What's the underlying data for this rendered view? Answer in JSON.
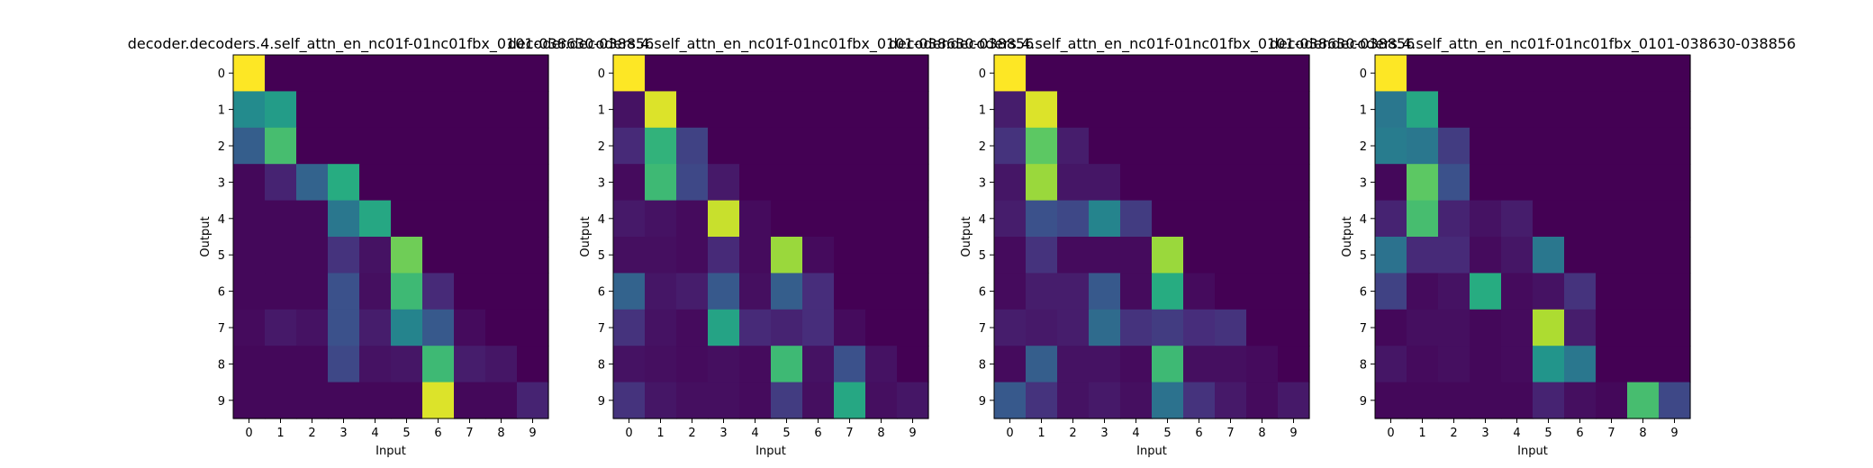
{
  "chart_data": [
    {
      "type": "heatmap",
      "title": "decoder.decoders.4.self_attn_en_nc01f-01nc01fbx_0101-038630-038856",
      "xlabel": "Input",
      "ylabel": "Output",
      "x_ticks": [
        "0",
        "1",
        "2",
        "3",
        "4",
        "5",
        "6",
        "7",
        "8",
        "9"
      ],
      "y_ticks": [
        "0",
        "1",
        "2",
        "3",
        "4",
        "5",
        "6",
        "7",
        "8",
        "9"
      ],
      "colormap": "viridis",
      "vmin": 0,
      "vmax": 1,
      "values": [
        [
          1.0,
          0.0,
          0.0,
          0.0,
          0.0,
          0.0,
          0.0,
          0.0,
          0.0,
          0.0
        ],
        [
          0.48,
          0.55,
          0.0,
          0.0,
          0.0,
          0.0,
          0.0,
          0.0,
          0.0,
          0.0
        ],
        [
          0.3,
          0.7,
          0.0,
          0.0,
          0.0,
          0.0,
          0.0,
          0.0,
          0.0,
          0.0
        ],
        [
          0.02,
          0.1,
          0.32,
          0.62,
          0.0,
          0.0,
          0.0,
          0.0,
          0.0,
          0.0
        ],
        [
          0.02,
          0.02,
          0.02,
          0.4,
          0.6,
          0.0,
          0.0,
          0.0,
          0.0,
          0.0
        ],
        [
          0.02,
          0.02,
          0.02,
          0.15,
          0.05,
          0.78,
          0.0,
          0.0,
          0.0,
          0.0
        ],
        [
          0.02,
          0.02,
          0.02,
          0.25,
          0.04,
          0.68,
          0.12,
          0.0,
          0.0,
          0.0
        ],
        [
          0.03,
          0.07,
          0.05,
          0.25,
          0.08,
          0.45,
          0.28,
          0.03,
          0.0,
          0.0
        ],
        [
          0.02,
          0.02,
          0.02,
          0.22,
          0.05,
          0.06,
          0.68,
          0.08,
          0.06,
          0.0
        ],
        [
          0.02,
          0.02,
          0.02,
          0.02,
          0.02,
          0.02,
          0.95,
          0.02,
          0.02,
          0.1
        ]
      ]
    },
    {
      "type": "heatmap",
      "title": "decoder.decoders.4.self_attn_en_nc01f-01nc01fbx_0101-038630-038856",
      "xlabel": "Input",
      "ylabel": "Output",
      "x_ticks": [
        "0",
        "1",
        "2",
        "3",
        "4",
        "5",
        "6",
        "7",
        "8",
        "9"
      ],
      "y_ticks": [
        "0",
        "1",
        "2",
        "3",
        "4",
        "5",
        "6",
        "7",
        "8",
        "9"
      ],
      "colormap": "viridis",
      "vmin": 0,
      "vmax": 1,
      "values": [
        [
          1.0,
          0.0,
          0.0,
          0.0,
          0.0,
          0.0,
          0.0,
          0.0,
          0.0,
          0.0
        ],
        [
          0.05,
          0.95,
          0.0,
          0.0,
          0.0,
          0.0,
          0.0,
          0.0,
          0.0,
          0.0
        ],
        [
          0.12,
          0.65,
          0.2,
          0.0,
          0.0,
          0.0,
          0.0,
          0.0,
          0.0,
          0.0
        ],
        [
          0.03,
          0.68,
          0.22,
          0.07,
          0.0,
          0.0,
          0.0,
          0.0,
          0.0,
          0.0
        ],
        [
          0.07,
          0.05,
          0.03,
          0.92,
          0.03,
          0.0,
          0.0,
          0.0,
          0.0,
          0.0
        ],
        [
          0.04,
          0.04,
          0.03,
          0.12,
          0.03,
          0.85,
          0.03,
          0.0,
          0.0,
          0.0
        ],
        [
          0.32,
          0.06,
          0.08,
          0.28,
          0.04,
          0.3,
          0.13,
          0.0,
          0.0,
          0.0
        ],
        [
          0.15,
          0.05,
          0.03,
          0.58,
          0.12,
          0.1,
          0.13,
          0.03,
          0.0,
          0.0
        ],
        [
          0.05,
          0.04,
          0.03,
          0.04,
          0.03,
          0.68,
          0.05,
          0.25,
          0.05,
          0.0
        ],
        [
          0.15,
          0.06,
          0.04,
          0.04,
          0.03,
          0.18,
          0.04,
          0.6,
          0.04,
          0.06
        ]
      ]
    },
    {
      "type": "heatmap",
      "title": "decoder.decoders.4.self_attn_en_nc01f-01nc01fbx_0101-038630-038856",
      "xlabel": "Input",
      "ylabel": "Output",
      "x_ticks": [
        "0",
        "1",
        "2",
        "3",
        "4",
        "5",
        "6",
        "7",
        "8",
        "9"
      ],
      "y_ticks": [
        "0",
        "1",
        "2",
        "3",
        "4",
        "5",
        "6",
        "7",
        "8",
        "9"
      ],
      "colormap": "viridis",
      "vmin": 0,
      "vmax": 1,
      "values": [
        [
          1.0,
          0.0,
          0.0,
          0.0,
          0.0,
          0.0,
          0.0,
          0.0,
          0.0,
          0.0
        ],
        [
          0.08,
          0.95,
          0.0,
          0.0,
          0.0,
          0.0,
          0.0,
          0.0,
          0.0,
          0.0
        ],
        [
          0.15,
          0.75,
          0.08,
          0.0,
          0.0,
          0.0,
          0.0,
          0.0,
          0.0,
          0.0
        ],
        [
          0.06,
          0.85,
          0.06,
          0.06,
          0.0,
          0.0,
          0.0,
          0.0,
          0.0,
          0.0
        ],
        [
          0.08,
          0.25,
          0.22,
          0.45,
          0.18,
          0.0,
          0.0,
          0.0,
          0.0,
          0.0
        ],
        [
          0.03,
          0.15,
          0.03,
          0.03,
          0.03,
          0.85,
          0.0,
          0.0,
          0.0,
          0.0
        ],
        [
          0.03,
          0.08,
          0.08,
          0.28,
          0.03,
          0.62,
          0.03,
          0.0,
          0.0,
          0.0
        ],
        [
          0.08,
          0.07,
          0.08,
          0.35,
          0.15,
          0.18,
          0.13,
          0.15,
          0.0,
          0.0
        ],
        [
          0.03,
          0.3,
          0.05,
          0.05,
          0.03,
          0.68,
          0.04,
          0.04,
          0.03,
          0.0
        ],
        [
          0.28,
          0.15,
          0.05,
          0.07,
          0.04,
          0.38,
          0.15,
          0.07,
          0.03,
          0.07
        ]
      ]
    },
    {
      "type": "heatmap",
      "title": "decoder.decoders.4.self_attn_en_nc01f-01nc01fbx_0101-038630-038856",
      "xlabel": "Input",
      "ylabel": "Output",
      "x_ticks": [
        "0",
        "1",
        "2",
        "3",
        "4",
        "5",
        "6",
        "7",
        "8",
        "9"
      ],
      "y_ticks": [
        "0",
        "1",
        "2",
        "3",
        "4",
        "5",
        "6",
        "7",
        "8",
        "9"
      ],
      "colormap": "viridis",
      "vmin": 0,
      "vmax": 1,
      "values": [
        [
          1.0,
          0.0,
          0.0,
          0.0,
          0.0,
          0.0,
          0.0,
          0.0,
          0.0,
          0.0
        ],
        [
          0.4,
          0.6,
          0.0,
          0.0,
          0.0,
          0.0,
          0.0,
          0.0,
          0.0,
          0.0
        ],
        [
          0.42,
          0.4,
          0.18,
          0.0,
          0.0,
          0.0,
          0.0,
          0.0,
          0.0,
          0.0
        ],
        [
          0.02,
          0.75,
          0.25,
          0.0,
          0.0,
          0.0,
          0.0,
          0.0,
          0.0,
          0.0
        ],
        [
          0.1,
          0.7,
          0.1,
          0.05,
          0.08,
          0.0,
          0.0,
          0.0,
          0.0,
          0.0
        ],
        [
          0.38,
          0.12,
          0.12,
          0.03,
          0.06,
          0.4,
          0.0,
          0.0,
          0.0,
          0.0
        ],
        [
          0.2,
          0.03,
          0.05,
          0.62,
          0.03,
          0.05,
          0.15,
          0.0,
          0.0,
          0.0
        ],
        [
          0.02,
          0.04,
          0.04,
          0.02,
          0.03,
          0.88,
          0.08,
          0.0,
          0.0,
          0.0
        ],
        [
          0.06,
          0.03,
          0.04,
          0.02,
          0.03,
          0.52,
          0.4,
          0.0,
          0.0,
          0.0
        ],
        [
          0.02,
          0.02,
          0.02,
          0.02,
          0.02,
          0.1,
          0.04,
          0.02,
          0.7,
          0.22
        ]
      ]
    }
  ]
}
